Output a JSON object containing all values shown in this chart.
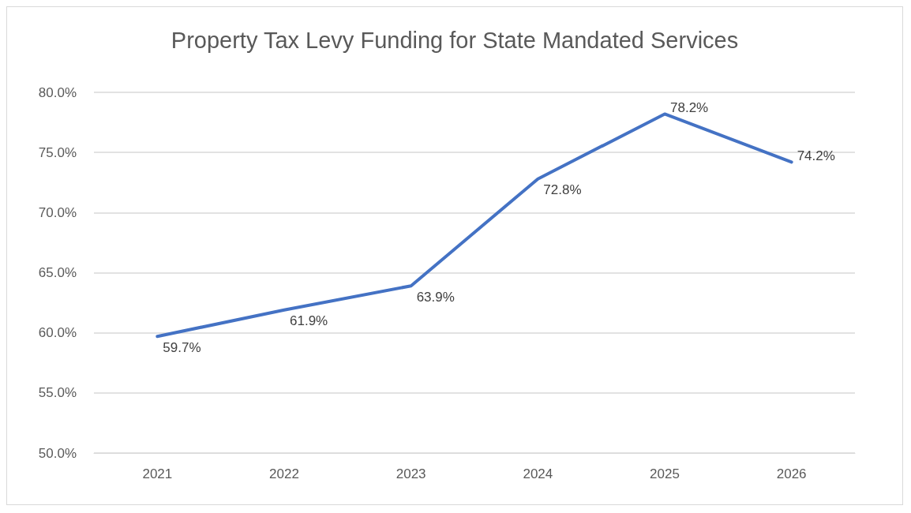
{
  "chart_data": {
    "type": "line",
    "title": "Property Tax Levy Funding for State Mandated Services",
    "categories": [
      "2021",
      "2022",
      "2023",
      "2024",
      "2025",
      "2026"
    ],
    "series": [
      {
        "color": "#4472c4",
        "values": [
          59.7,
          61.9,
          63.9,
          72.8,
          78.2,
          74.2
        ],
        "value_labels": [
          "59.7%",
          "61.9%",
          "63.9%",
          "72.8%",
          "78.2%",
          "74.2%"
        ]
      }
    ],
    "ylim": [
      50,
      80
    ],
    "yticks": [
      {
        "value": 50,
        "label": "50.0%"
      },
      {
        "value": 55,
        "label": "55.0%"
      },
      {
        "value": 60,
        "label": "60.0%"
      },
      {
        "value": 65,
        "label": "65.0%"
      },
      {
        "value": 70,
        "label": "70.0%"
      },
      {
        "value": 75,
        "label": "75.0%"
      },
      {
        "value": 80,
        "label": "80.0%"
      }
    ],
    "grid": "y",
    "marker": "none"
  }
}
